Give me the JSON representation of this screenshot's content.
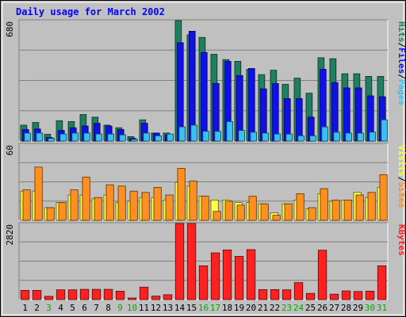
{
  "chart_data": {
    "type": "bar",
    "title": "Daily usage for March 2002",
    "categories": [
      "1",
      "2",
      "3",
      "4",
      "5",
      "6",
      "7",
      "8",
      "9",
      "10",
      "11",
      "12",
      "13",
      "14",
      "15",
      "16",
      "17",
      "18",
      "19",
      "20",
      "21",
      "22",
      "23",
      "24",
      "25",
      "26",
      "27",
      "28",
      "29",
      "30",
      "31"
    ],
    "weekend_days": [
      "3",
      "9",
      "10",
      "16",
      "17",
      "23",
      "24",
      "30",
      "31"
    ],
    "panels": [
      {
        "name": "requests",
        "max_label": "680",
        "ylim": [
          0,
          680
        ],
        "legend": [
          "Pages",
          "/",
          "Files",
          "/",
          "Hits"
        ],
        "series": [
          {
            "name": "Hits",
            "color": "#1e8060",
            "values": [
              90,
              105,
              38,
              115,
              110,
              150,
              135,
              90,
              75,
              25,
              120,
              45,
              45,
              680,
              600,
              585,
              490,
              460,
              450,
              405,
              375,
              400,
              320,
              355,
              270,
              470,
              465,
              380,
              380,
              365,
              365
            ]
          },
          {
            "name": "Files",
            "color": "#1010e8",
            "values": [
              65,
              68,
              20,
              60,
              75,
              85,
              100,
              85,
              65,
              15,
              100,
              45,
              35,
              555,
              620,
              500,
              325,
              450,
              370,
              410,
              295,
              325,
              240,
              240,
              135,
              405,
              330,
              300,
              300,
              255,
              250
            ]
          },
          {
            "name": "Pages",
            "color": "#38c0f0",
            "values": [
              45,
              45,
              15,
              40,
              45,
              45,
              40,
              40,
              35,
              10,
              45,
              30,
              40,
              80,
              90,
              55,
              55,
              110,
              60,
              50,
              45,
              40,
              40,
              30,
              30,
              80,
              50,
              45,
              45,
              50,
              120
            ]
          }
        ]
      },
      {
        "name": "visits",
        "max_label": "60",
        "ylim": [
          0,
          60
        ],
        "legend": [
          "Sites",
          "/",
          "Visits"
        ],
        "series": [
          {
            "name": "Visits",
            "color": "#ffff44",
            "values": [
              23,
              23,
              10,
              14,
              20,
              20,
              17,
              20,
              14,
              15,
              18,
              18,
              16,
              30,
              27,
              19,
              16,
              16,
              14,
              14,
              13,
              6,
              13,
              16,
              9,
              21,
              15,
              16,
              22,
              18,
              26
            ]
          },
          {
            "name": "Sites",
            "color": "#ff9020",
            "values": [
              24,
              42,
              10,
              14,
              24,
              34,
              18,
              28,
              27,
              23,
              22,
              26,
              20,
              41,
              31,
              19,
              7,
              15,
              12,
              19,
              13,
              4,
              13,
              21,
              10,
              25,
              16,
              16,
              20,
              22,
              36
            ]
          }
        ]
      },
      {
        "name": "kbytes",
        "max_label": "2820",
        "ylim": [
          0,
          2820
        ],
        "legend": [
          "KBytes"
        ],
        "series": [
          {
            "name": "KBytes",
            "color": "#ff2020",
            "values": [
              340,
              340,
              120,
              360,
              360,
              380,
              380,
              380,
              310,
              60,
              460,
              130,
              180,
              2820,
              2820,
              1250,
              1730,
              1840,
              1600,
              1850,
              370,
              370,
              360,
              630,
              230,
              1830,
              200,
              320,
              300,
              310,
              1250
            ]
          }
        ]
      }
    ],
    "grid": true
  },
  "colors": {
    "background": "#c0c0c0",
    "title": "#0000ff",
    "weekday_label": "#000000",
    "weekend_label": "#00aa00",
    "gridline": "#808080"
  }
}
